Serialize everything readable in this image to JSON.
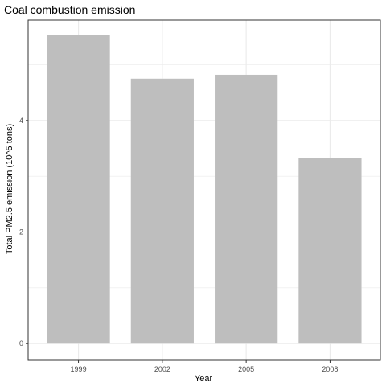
{
  "chart_data": {
    "type": "bar",
    "title": "Coal combustion emission",
    "xlabel": "Year",
    "ylabel": "Total PM2.5 emission (10^5 tons)",
    "categories": [
      "1999",
      "2002",
      "2005",
      "2008"
    ],
    "values": [
      5.53,
      4.75,
      4.82,
      3.33
    ],
    "ylim": [
      -0.3,
      5.8
    ],
    "yticks": [
      0,
      2,
      4
    ],
    "grid": true,
    "bar_color": "#bebebe",
    "grid_color": "#ebebeb"
  }
}
